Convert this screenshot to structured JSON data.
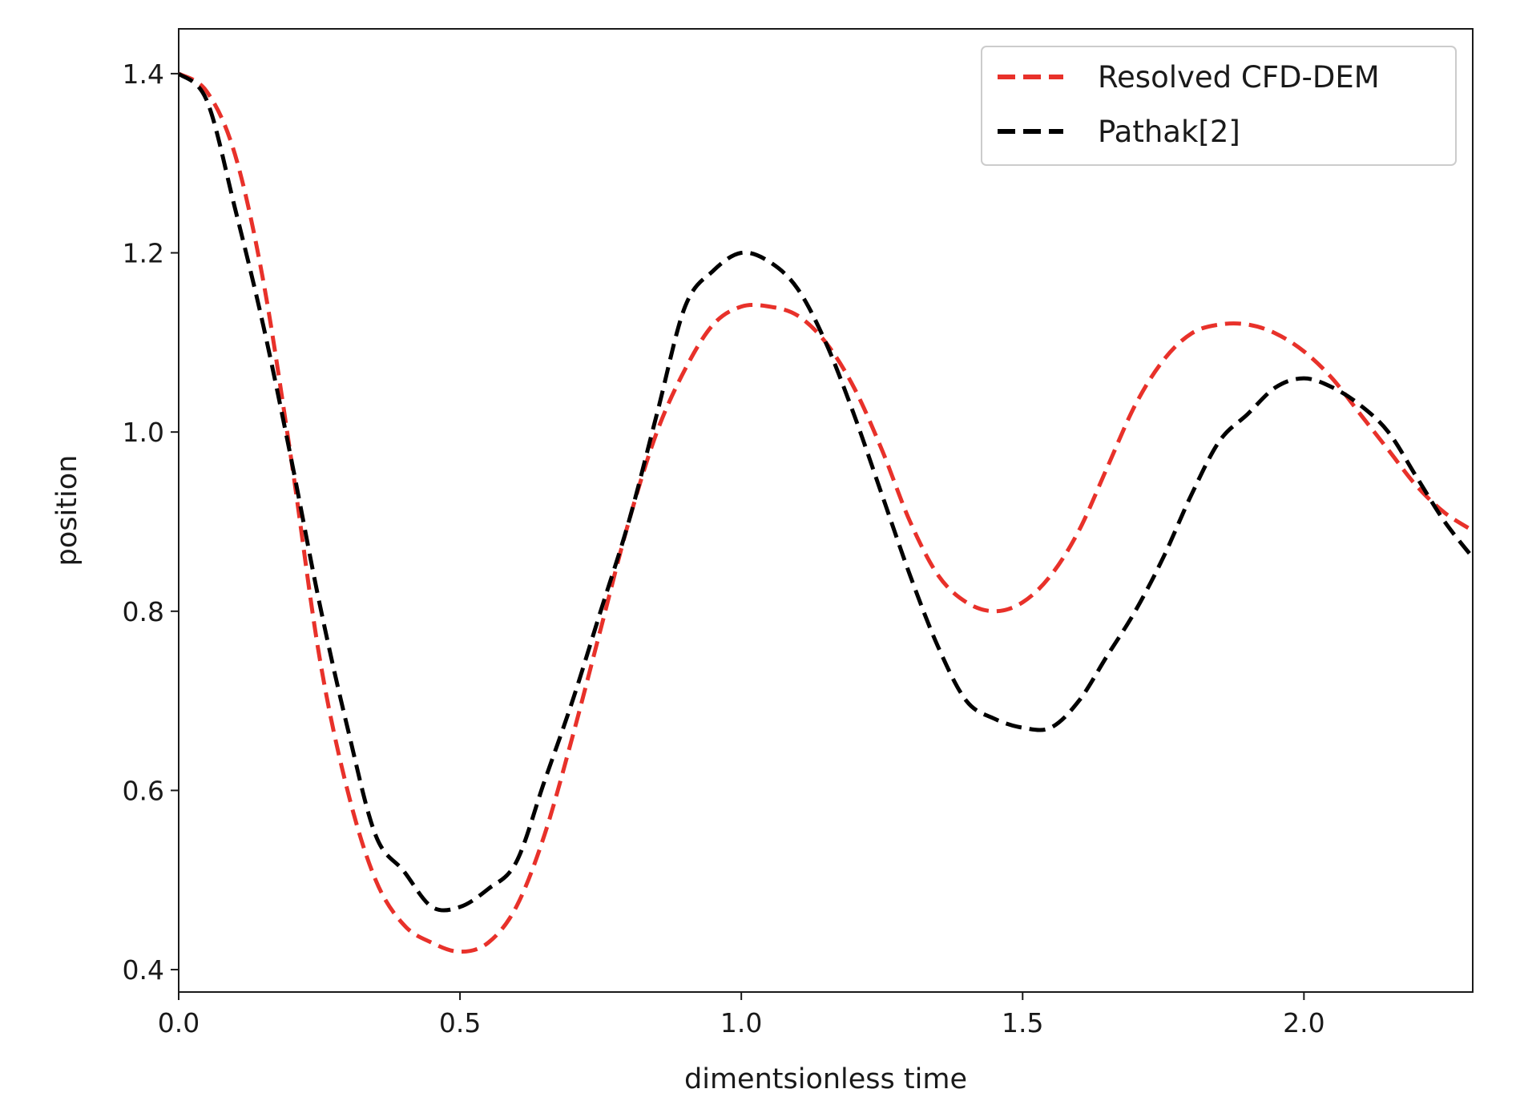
{
  "chart_data": {
    "type": "line",
    "title": "",
    "xlabel": "dimentsionless time",
    "ylabel": "position",
    "xlim": [
      0.0,
      2.3
    ],
    "ylim": [
      0.375,
      1.45
    ],
    "xticks": [
      "0.0",
      "0.5",
      "1.0",
      "1.5",
      "2.0"
    ],
    "yticks": [
      "0.4",
      "0.6",
      "0.8",
      "1.0",
      "1.2",
      "1.4"
    ],
    "grid": false,
    "legend_position": "top-right",
    "series": [
      {
        "name": "Resolved CFD-DEM",
        "color": "#e8312a",
        "style": "dashed",
        "x": [
          0.0,
          0.05,
          0.1,
          0.15,
          0.2,
          0.25,
          0.3,
          0.35,
          0.4,
          0.45,
          0.5,
          0.55,
          0.6,
          0.65,
          0.7,
          0.75,
          0.8,
          0.85,
          0.9,
          0.95,
          1.0,
          1.05,
          1.1,
          1.15,
          1.2,
          1.25,
          1.3,
          1.35,
          1.4,
          1.45,
          1.5,
          1.55,
          1.6,
          1.65,
          1.7,
          1.75,
          1.8,
          1.85,
          1.9,
          1.95,
          2.0,
          2.05,
          2.1,
          2.15,
          2.2,
          2.25,
          2.3
        ],
        "y": [
          1.4,
          1.38,
          1.31,
          1.17,
          0.97,
          0.75,
          0.6,
          0.5,
          0.45,
          0.43,
          0.42,
          0.43,
          0.47,
          0.55,
          0.66,
          0.78,
          0.9,
          1.0,
          1.07,
          1.12,
          1.14,
          1.14,
          1.13,
          1.1,
          1.05,
          0.98,
          0.9,
          0.84,
          0.81,
          0.8,
          0.81,
          0.84,
          0.89,
          0.96,
          1.03,
          1.08,
          1.11,
          1.12,
          1.12,
          1.11,
          1.09,
          1.06,
          1.02,
          0.98,
          0.94,
          0.91,
          0.89
        ]
      },
      {
        "name": "Pathak[2]",
        "color": "#000000",
        "style": "dashed",
        "x": [
          0.0,
          0.05,
          0.1,
          0.15,
          0.2,
          0.25,
          0.3,
          0.35,
          0.4,
          0.45,
          0.5,
          0.55,
          0.6,
          0.65,
          0.7,
          0.75,
          0.8,
          0.85,
          0.9,
          0.95,
          1.0,
          1.05,
          1.1,
          1.15,
          1.2,
          1.25,
          1.3,
          1.35,
          1.4,
          1.45,
          1.5,
          1.55,
          1.6,
          1.65,
          1.7,
          1.75,
          1.8,
          1.85,
          1.9,
          1.95,
          2.0,
          2.05,
          2.1,
          2.15,
          2.2,
          2.25,
          2.3
        ],
        "y": [
          1.4,
          1.37,
          1.25,
          1.12,
          0.97,
          0.81,
          0.67,
          0.55,
          0.51,
          0.47,
          0.47,
          0.49,
          0.52,
          0.61,
          0.7,
          0.8,
          0.9,
          1.02,
          1.14,
          1.18,
          1.2,
          1.19,
          1.16,
          1.1,
          1.02,
          0.93,
          0.84,
          0.76,
          0.7,
          0.68,
          0.67,
          0.67,
          0.7,
          0.75,
          0.8,
          0.86,
          0.93,
          0.99,
          1.02,
          1.05,
          1.06,
          1.05,
          1.03,
          1.0,
          0.95,
          0.9,
          0.86
        ]
      }
    ]
  }
}
